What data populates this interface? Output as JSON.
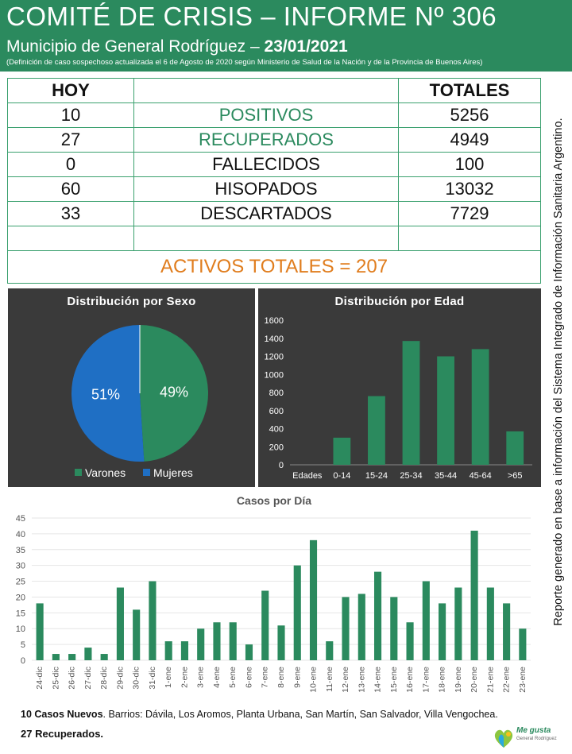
{
  "header": {
    "title": "COMITÉ DE CRISIS – INFORME Nº 306",
    "subtitle_prefix": "Municipio de General Rodríguez –",
    "date": "23/01/2021",
    "note": "(Definición de caso sospechoso actualizada el 6 de Agosto de 2020 según Ministerio de Salud de la Nación y de la Provincia de Buenos Aires)"
  },
  "stats": {
    "col_hoy": "HOY",
    "col_totales": "TOTALES",
    "rows": [
      {
        "hoy": "10",
        "label": "POSITIVOS",
        "total": "5256"
      },
      {
        "hoy": "27",
        "label": "RECUPERADOS",
        "total": "4949"
      },
      {
        "hoy": "0",
        "label": "FALLECIDOS",
        "total": "100"
      },
      {
        "hoy": "60",
        "label": "HISOPADOS",
        "total": "13032"
      },
      {
        "hoy": "33",
        "label": "DESCARTADOS",
        "total": "7729"
      }
    ],
    "activos": "ACTIVOS TOTALES = 207"
  },
  "colors": {
    "green": "#2b8a5e",
    "blue": "#1f6fc4",
    "orange": "#e07d1e",
    "panel": "#3a3a3a"
  },
  "chart_data": [
    {
      "type": "pie",
      "title": "Distribución por Sexo",
      "categories": [
        "Varones",
        "Mujeres"
      ],
      "values": [
        49,
        51
      ],
      "labels": [
        "49%",
        "51%"
      ],
      "colors": [
        "#2b8a5e",
        "#1f6fc4"
      ]
    },
    {
      "type": "bar",
      "title": "Distribución por Edad",
      "categories": [
        "Edades",
        "0-14",
        "15-24",
        "25-34",
        "35-44",
        "45-64",
        ">65"
      ],
      "values": [
        0,
        300,
        760,
        1370,
        1200,
        1280,
        370
      ],
      "ylim": [
        0,
        1600
      ],
      "yticks": [
        "0",
        "200",
        "400",
        "600",
        "800",
        "1000",
        "1200",
        "1400",
        "1600"
      ]
    },
    {
      "type": "bar",
      "title": "Casos por Día",
      "categories": [
        "24-dic",
        "25-dic",
        "26-dic",
        "27-dic",
        "28-dic",
        "29-dic",
        "30-dic",
        "31-dic",
        "1-ene",
        "2-ene",
        "3-ene",
        "4-ene",
        "5-ene",
        "6-ene",
        "7-ene",
        "8-ene",
        "9-ene",
        "10-ene",
        "11-ene",
        "12-ene",
        "13-ene",
        "14-ene",
        "15-ene",
        "16-ene",
        "17-ene",
        "18-ene",
        "19-ene",
        "20-ene",
        "21-ene",
        "22-ene",
        "23-ene"
      ],
      "values": [
        18,
        2,
        2,
        4,
        2,
        23,
        16,
        25,
        6,
        6,
        10,
        12,
        12,
        5,
        22,
        11,
        30,
        38,
        6,
        20,
        21,
        28,
        20,
        12,
        25,
        18,
        23,
        41,
        23,
        18,
        10
      ],
      "ylim": [
        0,
        45
      ],
      "yticks": [
        "0",
        "5",
        "10",
        "15",
        "20",
        "25",
        "30",
        "35",
        "40",
        "45"
      ]
    }
  ],
  "side_note": "Reporte generado en base a información del Sistema Integrado de Información Sanitaria Argentino.",
  "footer": {
    "new_cases_bold": "10 Casos Nuevos",
    "new_cases_rest": ". Barrios: Dávila, Los Aromos, Planta Urbana, San Martín, San Salvador, Villa Vengochea.",
    "recovered": "27 Recuperados."
  },
  "logo": {
    "text": "Me gusta",
    "sub": "General Rodríguez"
  }
}
